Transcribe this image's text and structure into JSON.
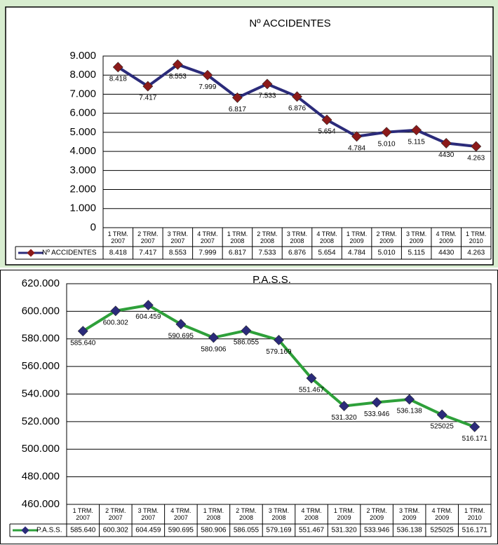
{
  "chart_data": [
    {
      "type": "line",
      "title": "Nº ACCIDENTES",
      "categories": [
        "1 TRM. 2007",
        "2 TRM. 2007",
        "3 TRM. 2007",
        "4 TRM. 2007",
        "1 TRM. 2008",
        "2 TRM. 2008",
        "3 TRM. 2008",
        "4 TRM. 2008",
        "1 TRM. 2009",
        "2 TRM. 2009",
        "3 TRM. 2009",
        "4 TRM. 2009",
        "1 TRM. 2010"
      ],
      "series": [
        {
          "name": "Nº ACCIDENTES",
          "color": "#2b2b7a",
          "marker_color": "#8b1a1a",
          "values": [
            8418,
            7417,
            8553,
            7999,
            6817,
            7533,
            6876,
            5654,
            4784,
            5010,
            5115,
            4430,
            4263
          ],
          "value_labels": [
            "8.418",
            "7.417",
            "8.553",
            "7.999",
            "6.817",
            "7.533",
            "6.876",
            "5.654",
            "4.784",
            "5.010",
            "5.115",
            "4430",
            "4.263"
          ]
        }
      ],
      "ylim": [
        0,
        9000
      ],
      "yticks": [
        {
          "value": 0,
          "label": "0"
        },
        {
          "value": 1000,
          "label": "1.000"
        },
        {
          "value": 2000,
          "label": "2.000"
        },
        {
          "value": 3000,
          "label": "3.000"
        },
        {
          "value": 4000,
          "label": "4.000"
        },
        {
          "value": 5000,
          "label": "5.000"
        },
        {
          "value": 6000,
          "label": "6.000"
        },
        {
          "value": 7000,
          "label": "7.000"
        },
        {
          "value": 8000,
          "label": "8.000"
        },
        {
          "value": 9000,
          "label": "9.000"
        }
      ],
      "grid": true
    },
    {
      "type": "line",
      "title": "P.A.S.S.",
      "categories": [
        "1 TRM. 2007",
        "2 TRM. 2007",
        "3 TRM. 2007",
        "4 TRM. 2007",
        "1 TRM. 2008",
        "2 TRM. 2008",
        "3 TRM. 2008",
        "4 TRM. 2008",
        "1 TRM. 2009",
        "2 TRM. 2009",
        "3 TRM. 2009",
        "4 TRM. 2009",
        "1 TRM. 2010"
      ],
      "series": [
        {
          "name": "P.A.S.S.",
          "color": "#2ea03a",
          "marker_color": "#2b2b7a",
          "values": [
            585640,
            600302,
            604459,
            590695,
            580906,
            586055,
            579169,
            551467,
            531320,
            533946,
            536138,
            525025,
            516171
          ],
          "value_labels": [
            "585.640",
            "600.302",
            "604.459",
            "590.695",
            "580.906",
            "586.055",
            "579.169",
            "551.467",
            "531.320",
            "533.946",
            "536.138",
            "525025",
            "516.171"
          ]
        }
      ],
      "ylim": [
        460000,
        620000
      ],
      "yticks": [
        {
          "value": 460000,
          "label": "460.000"
        },
        {
          "value": 480000,
          "label": "480.000"
        },
        {
          "value": 500000,
          "label": "500.000"
        },
        {
          "value": 520000,
          "label": "520.000"
        },
        {
          "value": 540000,
          "label": "540.000"
        },
        {
          "value": 560000,
          "label": "560.000"
        },
        {
          "value": 580000,
          "label": "580.000"
        },
        {
          "value": 600000,
          "label": "600.000"
        },
        {
          "value": 620000,
          "label": "620.000"
        }
      ],
      "grid": true
    }
  ]
}
